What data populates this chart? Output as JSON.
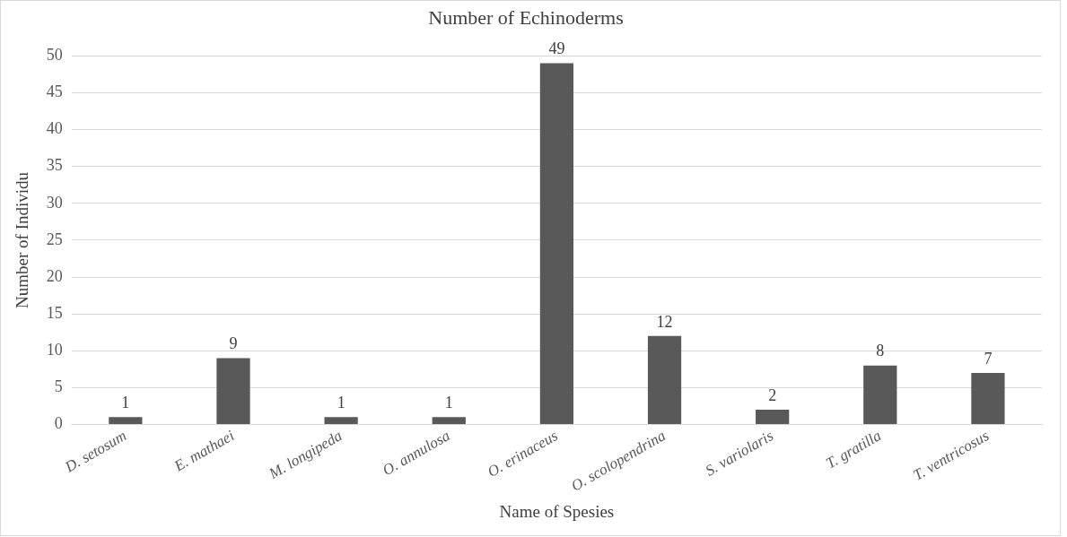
{
  "chart_data": {
    "type": "bar",
    "title": "Number of Echinoderms",
    "xlabel": "Name of Spesies",
    "ylabel": "Number of Individu",
    "categories": [
      "D. setosum",
      "E. mathaei",
      "M. longipeda",
      "O. annulosa",
      "O. erinaceus",
      "O. scolopendrina",
      "S. variolaris",
      "T. gratilla",
      "T. ventricosus"
    ],
    "values": [
      1,
      9,
      1,
      1,
      49,
      12,
      2,
      8,
      7
    ],
    "color": "#595959",
    "ylim": [
      0,
      50
    ],
    "yticks": [
      0,
      5,
      10,
      15,
      20,
      25,
      30,
      35,
      40,
      45,
      50
    ],
    "grid": "y",
    "data_labels": true
  }
}
